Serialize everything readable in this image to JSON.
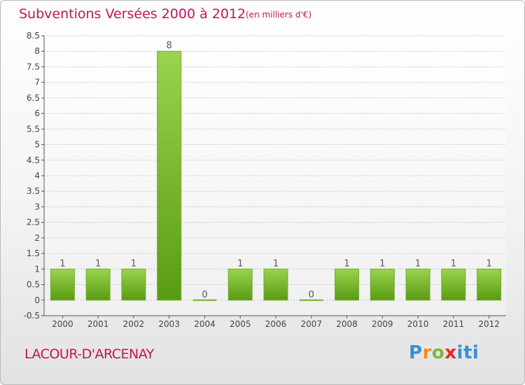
{
  "header": {
    "title": "Subventions Versées 2000 à 2012",
    "subtitle": "(en milliers d'€)"
  },
  "footer": {
    "commune": "LACOUR-D'ARCENAY",
    "logo": "Proxiti"
  },
  "colors": {
    "title": "#c0155a",
    "bar_top": "#9ad34e",
    "bar_bottom": "#5a9b14",
    "grid": "#c8c8c8"
  },
  "chart_data": {
    "type": "bar",
    "title": "Subventions Versées 2000 à 2012",
    "subtitle": "(en milliers d'€)",
    "categories": [
      "2000",
      "2001",
      "2002",
      "2003",
      "2004",
      "2005",
      "2006",
      "2007",
      "2008",
      "2009",
      "2010",
      "2011",
      "2012"
    ],
    "values": [
      1,
      1,
      1,
      8,
      0,
      1,
      1,
      0,
      1,
      1,
      1,
      1,
      1
    ],
    "data_labels": [
      "1",
      "1",
      "1",
      "8",
      "0",
      "1",
      "1",
      "0",
      "1",
      "1",
      "1",
      "1",
      "1"
    ],
    "ylim": [
      -0.5,
      8.5
    ],
    "yticks": [
      "8.5",
      "8",
      "7.5",
      "7",
      "6.5",
      "6",
      "5.5",
      "5",
      "4.5",
      "4",
      "3.5",
      "3",
      "2.5",
      "2",
      "1.5",
      "1",
      "0.5",
      "0",
      "-0.5"
    ],
    "ytick_values": [
      8.5,
      8,
      7.5,
      7,
      6.5,
      6,
      5.5,
      5,
      4.5,
      4,
      3.5,
      3,
      2.5,
      2,
      1.5,
      1,
      0.5,
      0,
      -0.5
    ],
    "grid": true,
    "xlabel": "",
    "ylabel": ""
  }
}
